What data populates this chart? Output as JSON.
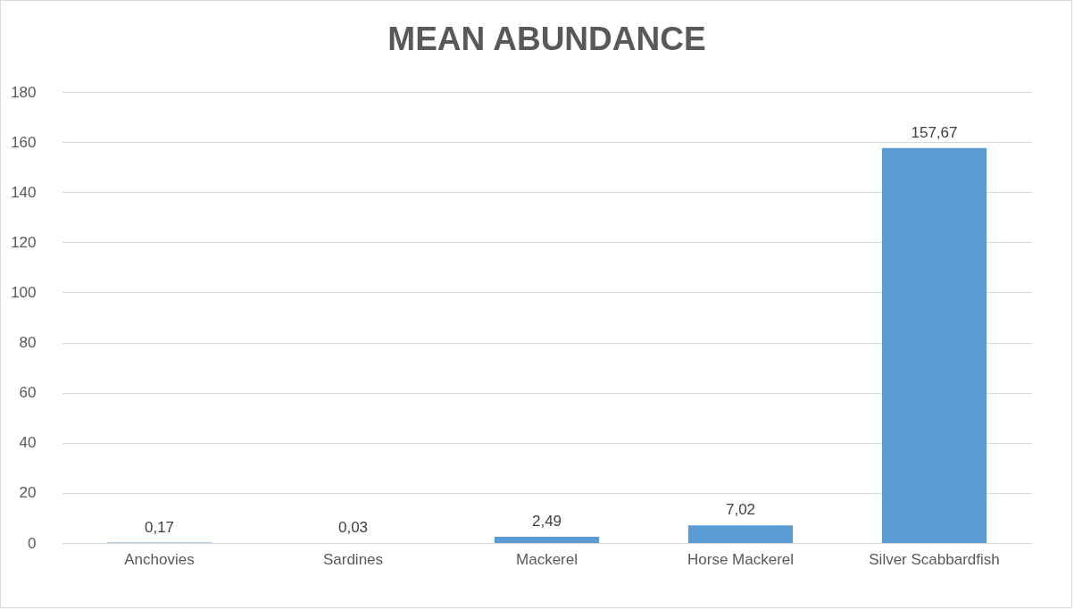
{
  "chart_data": {
    "type": "bar",
    "title": "MEAN ABUNDANCE",
    "categories": [
      "Anchovies",
      "Sardines",
      "Mackerel",
      "Horse Mackerel",
      "Silver Scabbardfish"
    ],
    "values": [
      0.17,
      0.03,
      2.49,
      7.02,
      157.67
    ],
    "value_labels": [
      "0,17",
      "0,03",
      "2,49",
      "7,02",
      "157,67"
    ],
    "color": "#5b9bd5",
    "ylim": [
      0,
      180
    ],
    "yticks": [
      0,
      20,
      40,
      60,
      80,
      100,
      120,
      140,
      160,
      180
    ],
    "grid": "y"
  }
}
